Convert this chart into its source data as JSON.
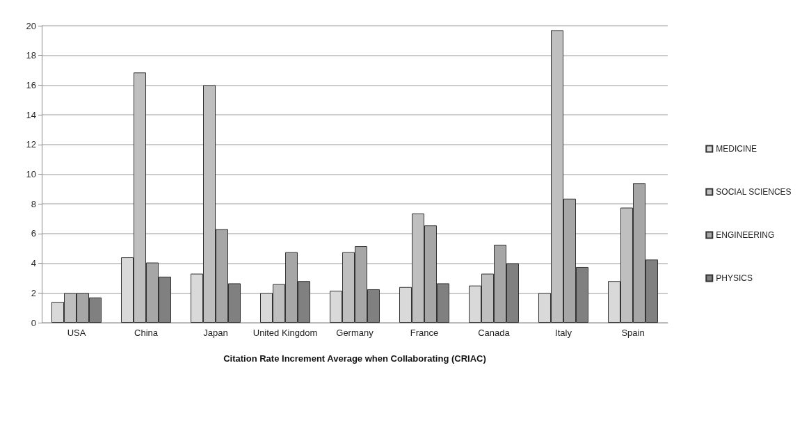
{
  "chart_data": {
    "type": "bar",
    "xlabel": "Citation Rate Increment Average when Collaborating (CRIAC)",
    "categories": [
      "USA",
      "China",
      "Japan",
      "United Kingdom",
      "Germany",
      "France",
      "Canada",
      "Italy",
      "Spain"
    ],
    "series": [
      {
        "name": "MEDICINE",
        "color": "#d9d9d9",
        "values": [
          1.4,
          4.4,
          3.3,
          2.0,
          2.15,
          2.4,
          2.5,
          2.0,
          2.8
        ]
      },
      {
        "name": "SOCIAL SCIENCES",
        "color": "#bfbfbf",
        "values": [
          2.0,
          16.85,
          16.0,
          2.6,
          4.75,
          7.35,
          3.3,
          19.7,
          7.75
        ]
      },
      {
        "name": "ENGINEERING",
        "color": "#a6a6a6",
        "values": [
          2.0,
          4.05,
          6.3,
          4.75,
          5.15,
          6.55,
          5.25,
          8.35,
          9.4
        ]
      },
      {
        "name": "PHYSICS",
        "color": "#808080",
        "values": [
          1.7,
          3.1,
          2.65,
          2.8,
          2.25,
          2.65,
          4.0,
          3.75,
          4.25
        ]
      }
    ],
    "ylim": [
      0,
      20
    ],
    "yticks": [
      0,
      2,
      4,
      6,
      8,
      10,
      12,
      14,
      16,
      18,
      20
    ],
    "grid": "y",
    "legend": "right"
  }
}
